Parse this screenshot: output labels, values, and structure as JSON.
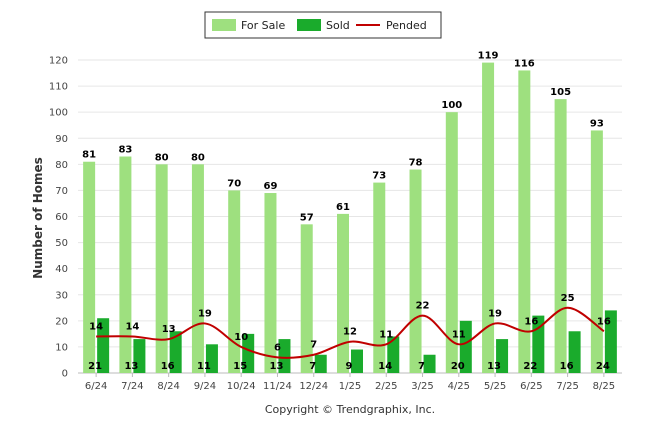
{
  "chart_data": {
    "type": "bar",
    "categories": [
      "6/24",
      "7/24",
      "8/24",
      "9/24",
      "10/24",
      "11/24",
      "12/24",
      "1/25",
      "2/25",
      "3/25",
      "4/25",
      "5/25",
      "6/25",
      "7/25",
      "8/25"
    ],
    "series": [
      {
        "name": "For Sale",
        "type": "bar",
        "color": "#9ee07f",
        "values": [
          81,
          83,
          80,
          80,
          70,
          69,
          57,
          61,
          73,
          78,
          100,
          119,
          116,
          105,
          93
        ]
      },
      {
        "name": "Sold",
        "type": "bar",
        "color": "#1aab2c",
        "values": [
          21,
          13,
          16,
          11,
          15,
          13,
          7,
          9,
          14,
          7,
          20,
          13,
          22,
          16,
          24
        ]
      },
      {
        "name": "Pended",
        "type": "line",
        "color": "#c00000",
        "values": [
          14,
          14,
          13,
          19,
          10,
          6,
          7,
          12,
          11,
          22,
          11,
          19,
          16,
          25,
          16
        ]
      }
    ],
    "title": "",
    "xlabel": "",
    "ylabel": "Number of Homes",
    "ylim": [
      0,
      120
    ],
    "yticks": [
      0,
      10,
      20,
      30,
      40,
      50,
      60,
      70,
      80,
      90,
      100,
      110,
      120
    ],
    "grid": true,
    "legend": "top-center"
  },
  "credit": "Copyright © Trendgraphix, Inc."
}
